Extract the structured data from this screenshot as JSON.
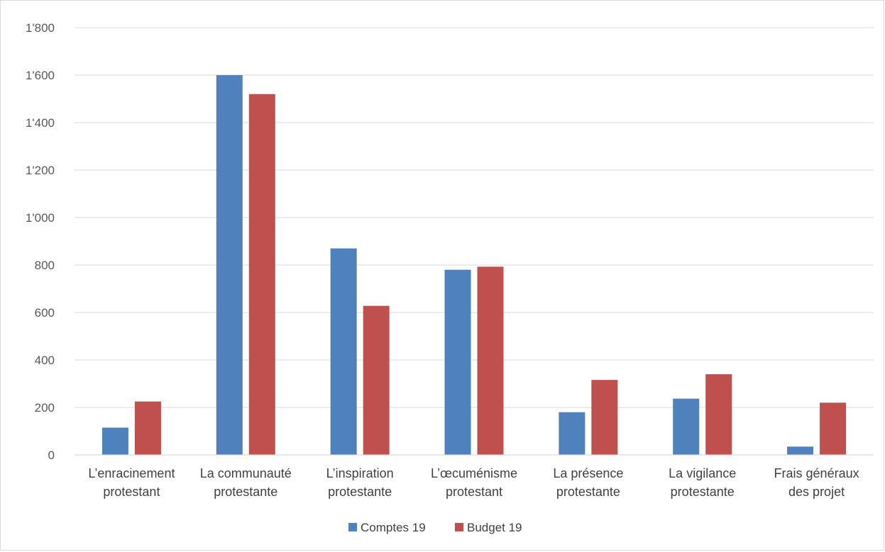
{
  "chart_data": {
    "type": "bar",
    "title": "",
    "xlabel": "",
    "ylabel": "",
    "ylim": [
      0,
      1800
    ],
    "ytick_step": 200,
    "yticks": [
      "0",
      "200",
      "400",
      "600",
      "800",
      "1'000",
      "1'200",
      "1'400",
      "1'600",
      "1'800"
    ],
    "grid": true,
    "legend_position": "bottom",
    "categories": [
      [
        "L’enracinement",
        "protestant"
      ],
      [
        "La communauté",
        "protestante"
      ],
      [
        "L’inspiration",
        "protestante"
      ],
      [
        "L’œcuménisme",
        "protestant"
      ],
      [
        "La présence",
        "protestante"
      ],
      [
        "La vigilance",
        "protestante"
      ],
      [
        "Frais généraux",
        "des projet"
      ]
    ],
    "series": [
      {
        "name": "Comptes 19",
        "color": "#4f81bd",
        "values": [
          115,
          1600,
          870,
          780,
          180,
          237,
          35
        ]
      },
      {
        "name": "Budget 19",
        "color": "#c0504d",
        "values": [
          225,
          1520,
          628,
          793,
          316,
          340,
          220
        ]
      }
    ]
  }
}
